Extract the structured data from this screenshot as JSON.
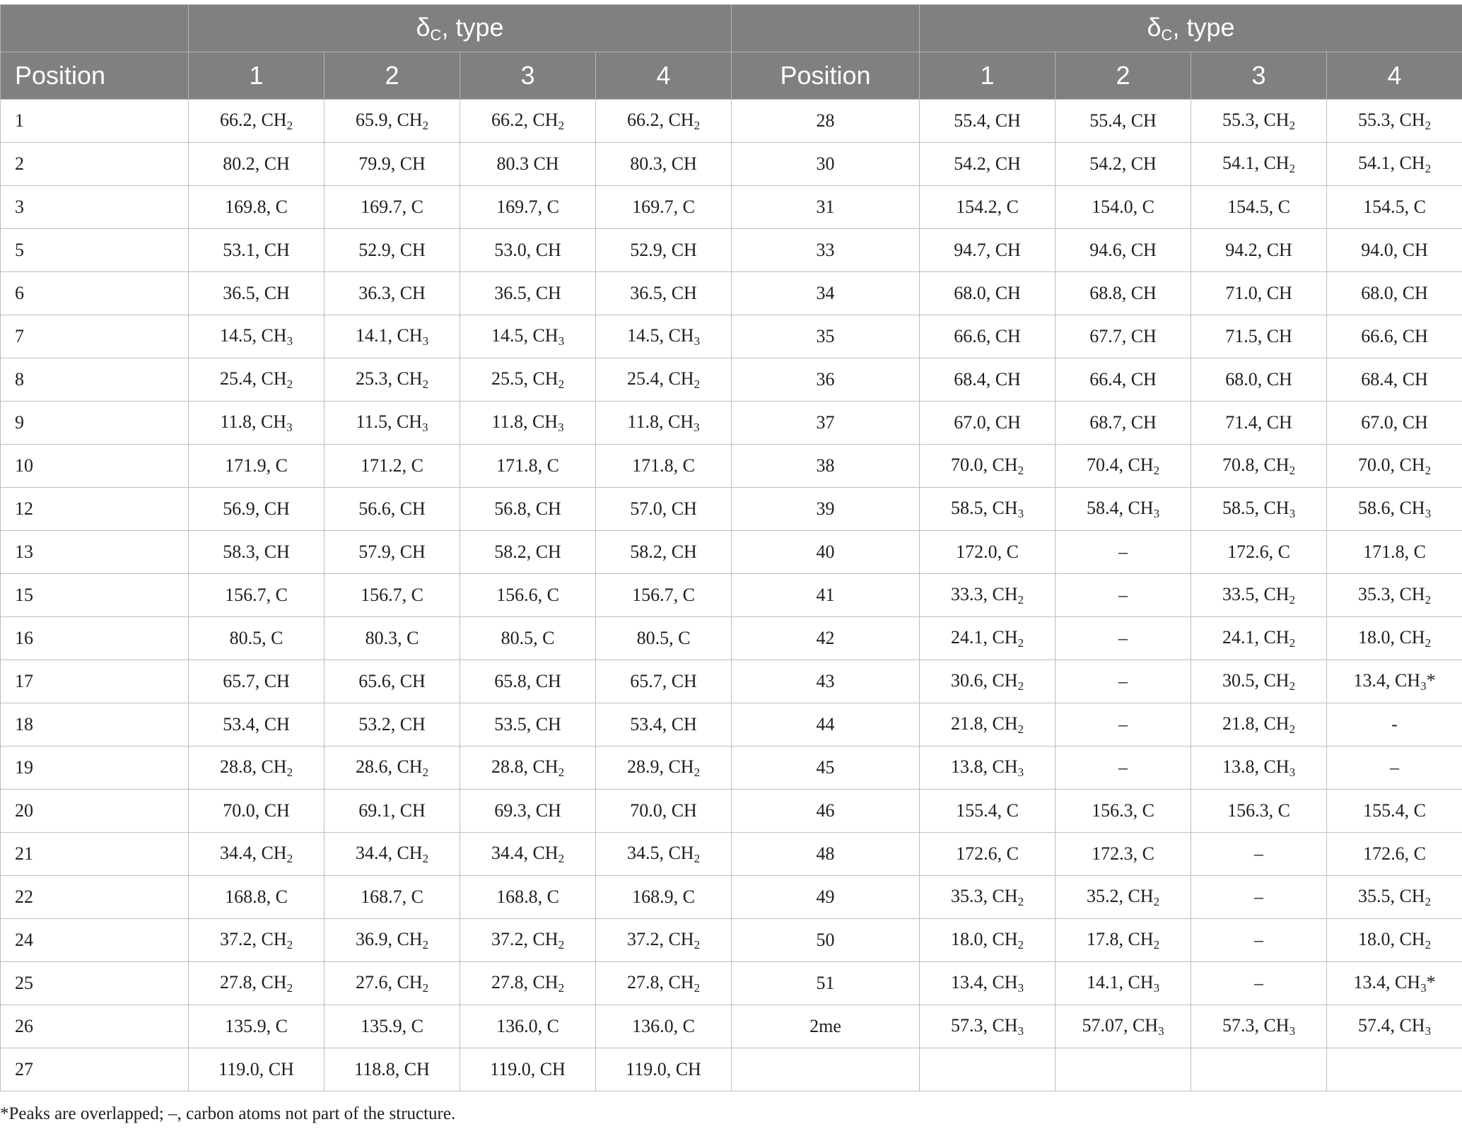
{
  "header": {
    "group_label": "δ",
    "group_label_sub": "C",
    "group_label_rest": ", type",
    "position_label": "Position",
    "compounds": [
      "1",
      "2",
      "3",
      "4"
    ]
  },
  "rows": [
    {
      "left": [
        "1",
        "66.2, CH2",
        "65.9, CH2",
        "66.2, CH2",
        "66.2, CH2"
      ],
      "right": [
        "28",
        "55.4, CH",
        "55.4, CH",
        "55.3, CH2",
        "55.3, CH2"
      ]
    },
    {
      "left": [
        "2",
        "80.2, CH",
        "79.9, CH",
        "80.3 CH",
        "80.3, CH"
      ],
      "right": [
        "30",
        "54.2, CH",
        "54.2, CH",
        "54.1, CH2",
        "54.1, CH2"
      ]
    },
    {
      "left": [
        "3",
        "169.8, C",
        "169.7, C",
        "169.7, C",
        "169.7, C"
      ],
      "right": [
        "31",
        "154.2, C",
        "154.0, C",
        "154.5, C",
        "154.5, C"
      ]
    },
    {
      "left": [
        "5",
        "53.1, CH",
        "52.9, CH",
        "53.0, CH",
        "52.9, CH"
      ],
      "right": [
        "33",
        "94.7, CH",
        "94.6, CH",
        "94.2, CH",
        "94.0, CH"
      ]
    },
    {
      "left": [
        "6",
        "36.5, CH",
        "36.3, CH",
        "36.5, CH",
        "36.5, CH"
      ],
      "right": [
        "34",
        "68.0, CH",
        "68.8, CH",
        "71.0, CH",
        "68.0, CH"
      ]
    },
    {
      "left": [
        "7",
        "14.5, CH3",
        "14.1, CH3",
        "14.5, CH3",
        "14.5, CH3"
      ],
      "right": [
        "35",
        "66.6, CH",
        "67.7, CH",
        "71.5, CH",
        "66.6, CH"
      ]
    },
    {
      "left": [
        "8",
        "25.4, CH2",
        "25.3, CH2",
        "25.5, CH2",
        "25.4, CH2"
      ],
      "right": [
        "36",
        "68.4, CH",
        "66.4, CH",
        "68.0, CH",
        "68.4, CH"
      ]
    },
    {
      "left": [
        "9",
        "11.8, CH3",
        "11.5, CH3",
        "11.8, CH3",
        "11.8, CH3"
      ],
      "right": [
        "37",
        "67.0, CH",
        "68.7, CH",
        "71.4, CH",
        "67.0, CH"
      ]
    },
    {
      "left": [
        "10",
        "171.9, C",
        "171.2, C",
        "171.8, C",
        "171.8, C"
      ],
      "right": [
        "38",
        "70.0, CH2",
        "70.4, CH2",
        "70.8, CH2",
        "70.0, CH2"
      ]
    },
    {
      "left": [
        "12",
        "56.9, CH",
        "56.6, CH",
        "56.8, CH",
        "57.0, CH"
      ],
      "right": [
        "39",
        "58.5, CH3",
        "58.4, CH3",
        "58.5, CH3",
        "58.6, CH3"
      ]
    },
    {
      "left": [
        "13",
        "58.3, CH",
        "57.9, CH",
        "58.2, CH",
        "58.2, CH"
      ],
      "right": [
        "40",
        "172.0, C",
        "–",
        "172.6, C",
        "171.8, C"
      ]
    },
    {
      "left": [
        "15",
        "156.7, C",
        "156.7, C",
        "156.6, C",
        "156.7, C"
      ],
      "right": [
        "41",
        "33.3, CH2",
        "–",
        "33.5, CH2",
        "35.3, CH2"
      ]
    },
    {
      "left": [
        "16",
        "80.5, C",
        "80.3, C",
        "80.5, C",
        "80.5, C"
      ],
      "right": [
        "42",
        "24.1, CH2",
        "–",
        "24.1, CH2",
        "18.0, CH2"
      ]
    },
    {
      "left": [
        "17",
        "65.7, CH",
        "65.6, CH",
        "65.8, CH",
        "65.7, CH"
      ],
      "right": [
        "43",
        "30.6, CH2",
        "–",
        "30.5, CH2",
        "13.4, CH3*"
      ]
    },
    {
      "left": [
        "18",
        "53.4, CH",
        "53.2, CH",
        "53.5, CH",
        "53.4, CH"
      ],
      "right": [
        "44",
        "21.8, CH2",
        "–",
        "21.8, CH2",
        "-"
      ]
    },
    {
      "left": [
        "19",
        "28.8, CH2",
        "28.6, CH2",
        "28.8, CH2",
        "28.9, CH2"
      ],
      "right": [
        "45",
        "13.8, CH3",
        "–",
        "13.8, CH3",
        "–"
      ]
    },
    {
      "left": [
        "20",
        "70.0, CH",
        "69.1, CH",
        "69.3, CH",
        "70.0, CH"
      ],
      "right": [
        "46",
        "155.4, C",
        "156.3, C",
        "156.3, C",
        "155.4, C"
      ]
    },
    {
      "left": [
        "21",
        "34.4, CH2",
        "34.4, CH2",
        "34.4, CH2",
        "34.5, CH2"
      ],
      "right": [
        "48",
        "172.6, C",
        "172.3, C",
        "–",
        "172.6, C"
      ]
    },
    {
      "left": [
        "22",
        "168.8, C",
        "168.7, C",
        "168.8, C",
        "168.9, C"
      ],
      "right": [
        "49",
        "35.3, CH2",
        "35.2, CH2",
        "–",
        "35.5, CH2"
      ]
    },
    {
      "left": [
        "24",
        "37.2, CH2",
        "36.9, CH2",
        "37.2, CH2",
        "37.2, CH2"
      ],
      "right": [
        "50",
        "18.0, CH2",
        "17.8, CH2",
        "–",
        "18.0, CH2"
      ]
    },
    {
      "left": [
        "25",
        "27.8, CH2",
        "27.6, CH2",
        "27.8, CH2",
        "27.8, CH2"
      ],
      "right": [
        "51",
        "13.4, CH3",
        "14.1, CH3",
        "–",
        "13.4, CH3*"
      ]
    },
    {
      "left": [
        "26",
        "135.9, C",
        "135.9, C",
        "136.0, C",
        "136.0, C"
      ],
      "right": [
        "2me",
        "57.3, CH3",
        "57.07, CH3",
        "57.3, CH3",
        "57.4, CH3"
      ]
    },
    {
      "left": [
        "27",
        "119.0, CH",
        "118.8, CH",
        "119.0, CH",
        "119.0, CH"
      ],
      "right": [
        "",
        "",
        "",
        "",
        ""
      ]
    }
  ],
  "footnote": "*Peaks are overlapped; –, carbon atoms not part of the structure."
}
